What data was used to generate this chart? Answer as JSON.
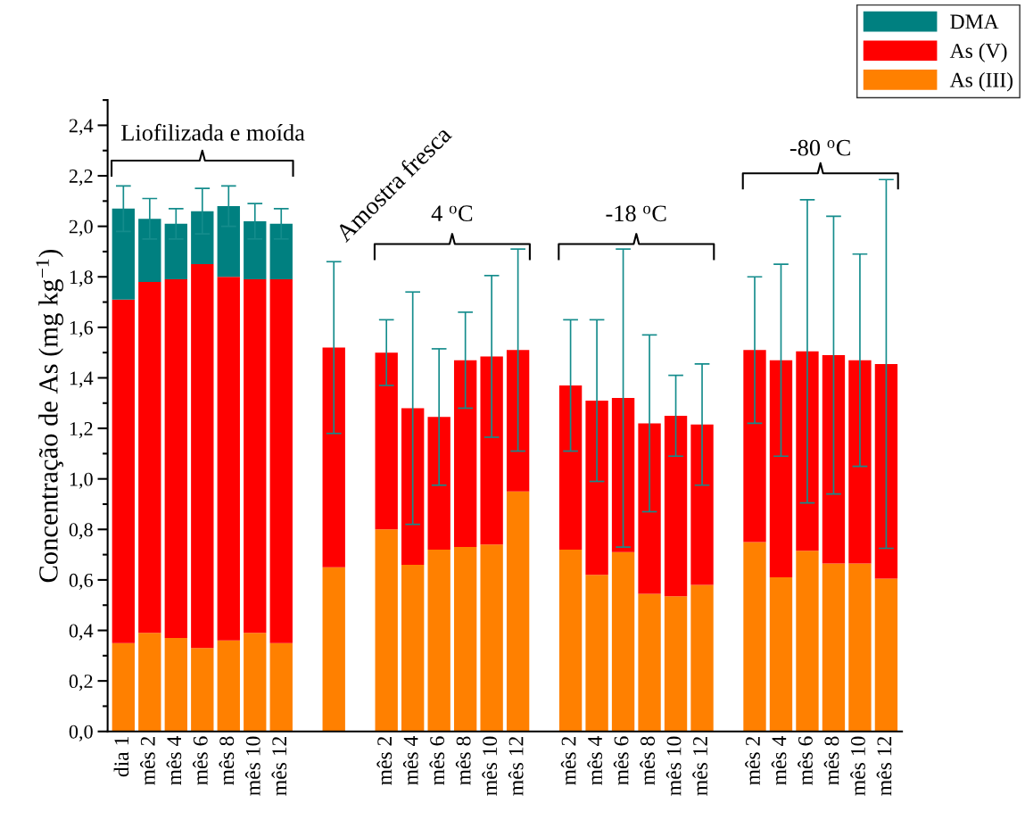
{
  "chart_data": {
    "type": "bar",
    "stacked": true,
    "ylabel": "Concentração de As (mg kg$^{−1}$)",
    "categories": [
      "dia 1",
      "mês 2",
      "mês 4",
      "mês 6",
      "mês 8",
      "mês 10",
      "mês 12",
      null,
      null,
      null,
      "mês 2",
      "mês 4",
      "mês 6",
      "mês 8",
      "mês 10",
      "mês 12",
      null,
      "mês 2",
      "mês 4",
      "mês 6",
      "mês 8",
      "mês 10",
      "mês 12",
      null,
      "mês 2",
      "mês 4",
      "mês 6",
      "mês 8",
      "mês 10",
      "mês 12"
    ],
    "series": [
      {
        "name": "As (III)",
        "color": "#ff8000",
        "values": [
          0.35,
          0.39,
          0.37,
          0.33,
          0.36,
          0.39,
          0.35,
          null,
          0.65,
          null,
          0.8,
          0.66,
          0.72,
          0.73,
          0.74,
          0.95,
          null,
          0.72,
          0.62,
          0.71,
          0.545,
          0.535,
          0.58,
          null,
          0.75,
          0.61,
          0.715,
          0.665,
          0.665,
          0.605
        ]
      },
      {
        "name": "As (V)",
        "color": "#ff0000",
        "values": [
          1.36,
          1.39,
          1.42,
          1.52,
          1.44,
          1.4,
          1.44,
          null,
          0.87,
          null,
          0.7,
          0.62,
          0.525,
          0.74,
          0.745,
          0.56,
          null,
          0.65,
          0.69,
          0.61,
          0.675,
          0.715,
          0.635,
          null,
          0.76,
          0.86,
          0.79,
          0.825,
          0.805,
          0.85
        ],
        "errors": [
          null,
          null,
          null,
          null,
          null,
          null,
          null,
          null,
          0.34,
          null,
          0.13,
          0.46,
          0.27,
          0.19,
          0.32,
          0.4,
          null,
          0.26,
          0.32,
          0.59,
          0.35,
          0.16,
          0.24,
          null,
          0.29,
          0.38,
          0.6,
          0.55,
          0.42,
          0.73
        ]
      },
      {
        "name": "DMA",
        "color": "#008080",
        "values": [
          0.36,
          0.25,
          0.22,
          0.21,
          0.28,
          0.23,
          0.22,
          null,
          null,
          null,
          null,
          null,
          null,
          null,
          null,
          null,
          null,
          null,
          null,
          null,
          null,
          null,
          null,
          null,
          null,
          null,
          null,
          null,
          null,
          null
        ],
        "errors": [
          0.09,
          0.08,
          0.06,
          0.09,
          0.08,
          0.07,
          0.06,
          null,
          null,
          null,
          null,
          null,
          null,
          null,
          null,
          null,
          null,
          null,
          null,
          null,
          null,
          null,
          null,
          null,
          null,
          null,
          null,
          null,
          null,
          null
        ]
      }
    ],
    "ylim": [
      0,
      2.5
    ],
    "yticks": [
      {
        "value": 0,
        "label": "0,0"
      },
      {
        "value": 0.2,
        "label": "0,2"
      },
      {
        "value": 0.4,
        "label": "0,4"
      },
      {
        "value": 0.6,
        "label": "0,6"
      },
      {
        "value": 0.8,
        "label": "0,8"
      },
      {
        "value": 1.0,
        "label": "1,0"
      },
      {
        "value": 1.2,
        "label": "1,2"
      },
      {
        "value": 1.4,
        "label": "1,4"
      },
      {
        "value": 1.6,
        "label": "1,6"
      },
      {
        "value": 1.8,
        "label": "1,8"
      },
      {
        "value": 2.0,
        "label": "2,0"
      },
      {
        "value": 2.2,
        "label": "2,2"
      },
      {
        "value": 2.4,
        "label": "2,4"
      }
    ],
    "annotations": [
      "Liofilizada e moída",
      "Amostra fresca",
      "4 $^{o}$C",
      "-18 $^{o}$C",
      "-80 $^{o}$C"
    ],
    "legend": "top right",
    "grid": false
  }
}
